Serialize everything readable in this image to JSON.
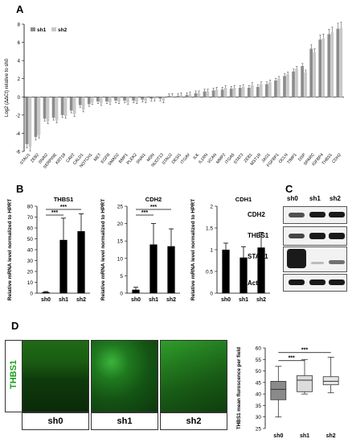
{
  "panels": {
    "a": "A",
    "b": "B",
    "c": "C",
    "d": "D"
  },
  "chart_data": [
    {
      "type": "bar",
      "panel": "A",
      "ylabel": "Log2 (ΔΔCt) relative to sh0",
      "ylim": [
        -6,
        8
      ],
      "yticks": [
        "-6",
        "-4",
        "-2",
        "0",
        "2",
        "4",
        "6",
        "8"
      ],
      "categories": [
        "STAU1",
        "ZEB2",
        "SNAI2",
        "SERPINE",
        "KRT19",
        "CAV2",
        "CALD1",
        "NOTCH1",
        "MET",
        "EGFR",
        "SMAD2",
        "BMP1",
        "PLEK2",
        "SNAI1",
        "MSN",
        "NUDT13",
        "STAU2",
        "DESI1",
        "ITGAV",
        "ILK",
        "IL1RN",
        "VCAN",
        "MMP2",
        "ITGA5",
        "STAT3",
        "ZEB1",
        "MST1R",
        "JAG1",
        "FGFBP1",
        "OCLN",
        "TIMP1",
        "DSP",
        "SPARC",
        "IGFBP4",
        "THBS1",
        "CDH2"
      ],
      "series": [
        {
          "name": "sh1",
          "color": "#8c8c8c",
          "values": [
            -5.2,
            -4.4,
            -2.4,
            -2.3,
            -2.0,
            -1.5,
            -0.9,
            -0.8,
            -0.5,
            -0.5,
            -0.4,
            -0.4,
            -0.4,
            -0.3,
            -0.2,
            -0.2,
            0.1,
            0.1,
            0.2,
            0.4,
            0.6,
            0.7,
            0.8,
            0.9,
            1.0,
            1.0,
            1.1,
            1.4,
            1.8,
            2.3,
            2.8,
            3.4,
            5.3,
            6.3,
            6.9,
            7.5
          ]
        },
        {
          "name": "sh2",
          "color": "#c8c8c8",
          "values": [
            -5.5,
            -4.2,
            -2.7,
            -2.6,
            -2.1,
            -1.9,
            -1.4,
            -0.6,
            -0.7,
            -0.6,
            -0.5,
            -0.6,
            -0.5,
            -0.4,
            -0.2,
            -0.4,
            0.1,
            0.2,
            0.3,
            0.4,
            0.6,
            0.8,
            1.0,
            1.0,
            1.1,
            1.3,
            1.4,
            1.6,
            2.0,
            2.5,
            3.1,
            2.7,
            4.9,
            6.4,
            7.1,
            7.6
          ]
        }
      ],
      "legend": [
        "sh1",
        "sh2"
      ]
    },
    {
      "type": "bar",
      "panel": "B",
      "title": "THBS1",
      "ylabel": "Relative mRNA level normalized to HPRT",
      "categories": [
        "sh0",
        "sh1",
        "sh2"
      ],
      "values": [
        1,
        49,
        57
      ],
      "errors": [
        0.5,
        20,
        16
      ],
      "ylim": [
        0,
        80
      ],
      "yticks": [
        "0",
        "10",
        "20",
        "30",
        "40",
        "50",
        "60",
        "70",
        "80"
      ],
      "significance": [
        "***",
        "***"
      ]
    },
    {
      "type": "bar",
      "panel": "B",
      "title": "CDH2",
      "ylabel": "Relative mRNA level normalized to HPRT",
      "categories": [
        "sh0",
        "sh1",
        "sh2"
      ],
      "values": [
        1,
        14,
        13.5
      ],
      "errors": [
        0.7,
        6,
        5
      ],
      "ylim": [
        0,
        25
      ],
      "yticks": [
        "0",
        "5",
        "10",
        "15",
        "20",
        "25"
      ],
      "significance": [
        "***",
        "***"
      ]
    },
    {
      "type": "bar",
      "panel": "B",
      "title": "CDH1",
      "ylabel": "Relative mRNA level normalized to HPRT",
      "categories": [
        "sh0",
        "sh1",
        "sh2"
      ],
      "values": [
        1.0,
        0.82,
        1.05
      ],
      "errors": [
        0.15,
        0.25,
        0.35
      ],
      "ylim": [
        0,
        2
      ],
      "yticks": [
        "0",
        "0.5",
        "1",
        "1.5",
        "2"
      ]
    },
    {
      "type": "box",
      "panel": "D",
      "ylabel": "THBS1 mean fluroscence per field",
      "categories": [
        "sh0",
        "sh1",
        "sh2"
      ],
      "boxes": [
        {
          "min": 30,
          "q1": 37.5,
          "median": 42,
          "q3": 45.5,
          "max": 52
        },
        {
          "min": 40,
          "q1": 41,
          "median": 46,
          "q3": 48,
          "max": 55
        },
        {
          "min": 40.5,
          "q1": 44,
          "median": 45.5,
          "q3": 47.5,
          "max": 56
        }
      ],
      "ylim": [
        25,
        60
      ],
      "yticks": [
        "25",
        "30",
        "35",
        "40",
        "45",
        "50",
        "55",
        "60"
      ],
      "significance": [
        "***",
        "***"
      ]
    }
  ],
  "western_blot": {
    "lanes": [
      "sh0",
      "sh1",
      "sh2"
    ],
    "rows": [
      "CDH2",
      "THBS1",
      "STAU1",
      "Actin"
    ]
  },
  "microscopy": {
    "stain_label": "THBS1",
    "images": [
      "sh0",
      "sh1",
      "sh2"
    ]
  }
}
